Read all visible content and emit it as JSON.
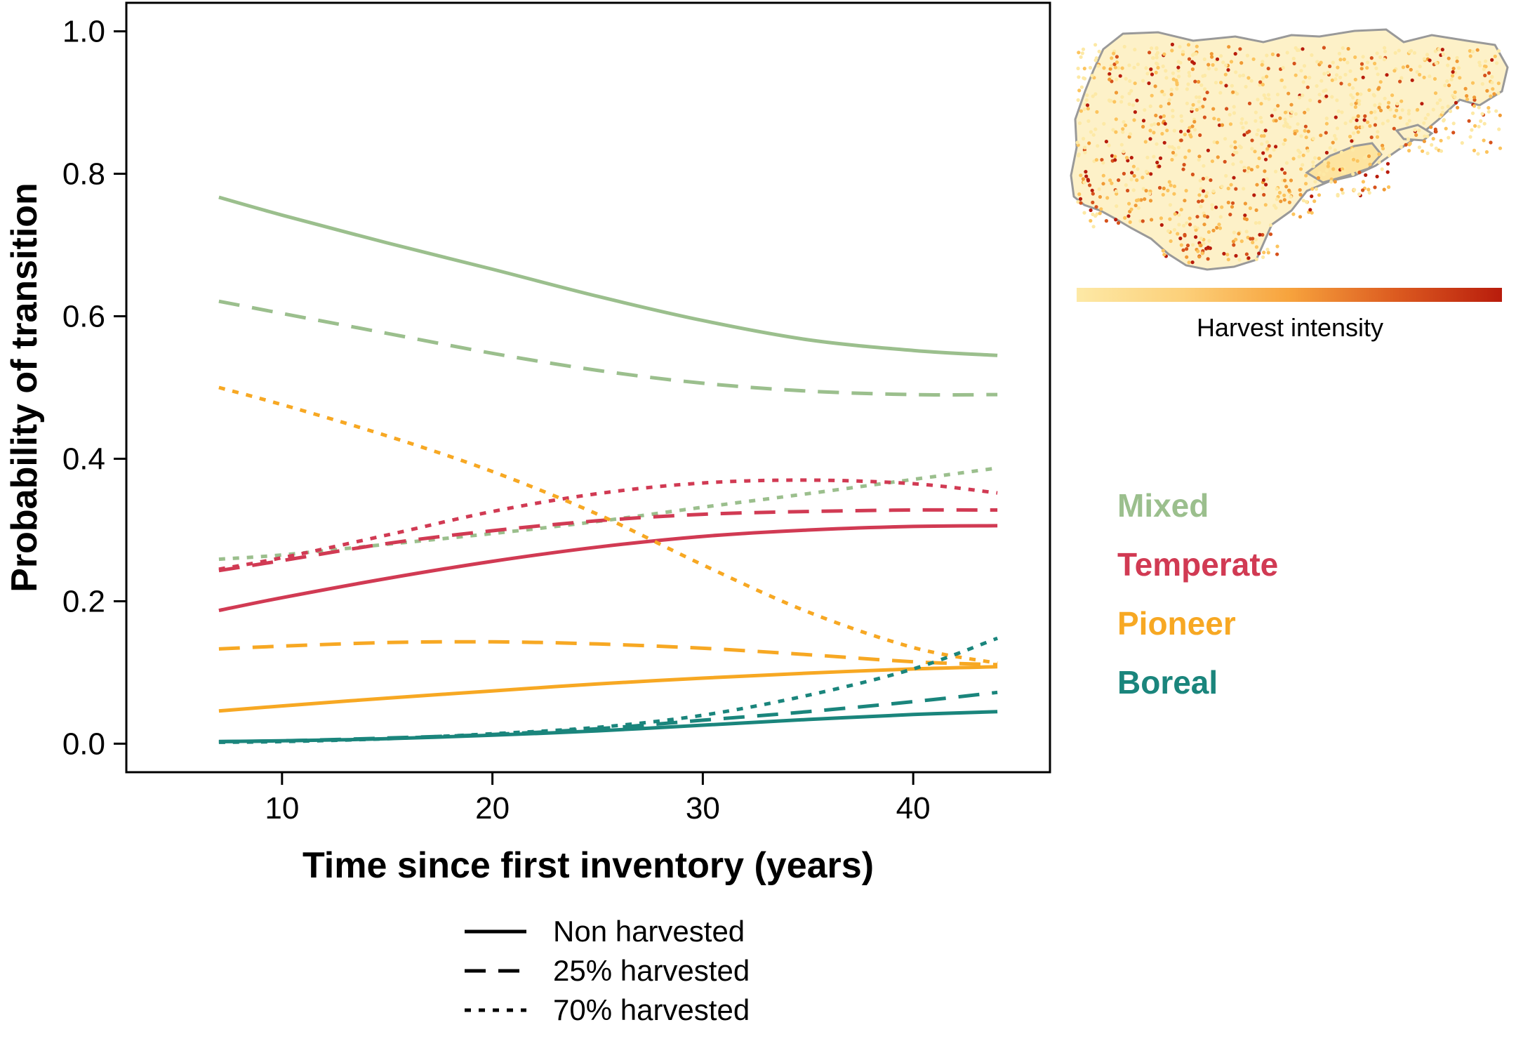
{
  "chart_data": {
    "type": "line",
    "xlabel": "Time since first inventory (years)",
    "ylabel": "Probability of transition",
    "xlim": [
      2.6,
      46.5
    ],
    "ylim": [
      -0.04,
      1.04
    ],
    "xticks": [
      10,
      20,
      30,
      40
    ],
    "yticks": [
      0.0,
      0.2,
      0.4,
      0.6,
      0.8,
      1.0
    ],
    "ytick_labels": [
      "0.0",
      "0.2",
      "0.4",
      "0.6",
      "0.8",
      "1.0"
    ],
    "x": [
      7,
      10,
      15,
      20,
      25,
      30,
      35,
      40,
      44
    ],
    "series": [
      {
        "name": "Mixed - Non harvested",
        "group": "Mixed",
        "harvest": "Non harvested",
        "values": [
          0.767,
          0.742,
          0.703,
          0.666,
          0.628,
          0.594,
          0.567,
          0.552,
          0.545
        ]
      },
      {
        "name": "Mixed - 25% harvested",
        "group": "Mixed",
        "harvest": "25% harvested",
        "values": [
          0.621,
          0.604,
          0.576,
          0.548,
          0.524,
          0.506,
          0.495,
          0.49,
          0.49
        ]
      },
      {
        "name": "Mixed - 70% harvested",
        "group": "Mixed",
        "harvest": "70% harvested",
        "values": [
          0.259,
          0.265,
          0.28,
          0.295,
          0.312,
          0.332,
          0.351,
          0.371,
          0.387
        ]
      },
      {
        "name": "Temperate - Non harvested",
        "group": "Temperate",
        "harvest": "Non harvested",
        "values": [
          0.187,
          0.205,
          0.232,
          0.256,
          0.276,
          0.291,
          0.3,
          0.305,
          0.306
        ]
      },
      {
        "name": "Temperate - 25% harvested",
        "group": "Temperate",
        "harvest": "25% harvested",
        "values": [
          0.243,
          0.257,
          0.281,
          0.299,
          0.313,
          0.322,
          0.326,
          0.328,
          0.328
        ]
      },
      {
        "name": "Temperate - 70% harvested",
        "group": "Temperate",
        "harvest": "70% harvested",
        "values": [
          0.245,
          0.261,
          0.293,
          0.326,
          0.351,
          0.366,
          0.37,
          0.365,
          0.352
        ]
      },
      {
        "name": "Pioneer - Non harvested",
        "group": "Pioneer",
        "harvest": "Non harvested",
        "values": [
          0.046,
          0.053,
          0.064,
          0.074,
          0.084,
          0.092,
          0.099,
          0.105,
          0.108
        ]
      },
      {
        "name": "Pioneer - 25% harvested",
        "group": "Pioneer",
        "harvest": "25% harvested",
        "values": [
          0.133,
          0.137,
          0.142,
          0.143,
          0.14,
          0.134,
          0.125,
          0.115,
          0.111
        ]
      },
      {
        "name": "Pioneer - 70% harvested",
        "group": "Pioneer",
        "harvest": "70% harvested",
        "values": [
          0.5,
          0.476,
          0.432,
          0.382,
          0.322,
          0.251,
          0.185,
          0.135,
          0.113
        ]
      },
      {
        "name": "Boreal - Non harvested",
        "group": "Boreal",
        "harvest": "Non harvested",
        "values": [
          0.003,
          0.004,
          0.007,
          0.012,
          0.018,
          0.026,
          0.034,
          0.041,
          0.045
        ]
      },
      {
        "name": "Boreal - 25% harvested",
        "group": "Boreal",
        "harvest": "25% harvested",
        "values": [
          0.003,
          0.004,
          0.008,
          0.013,
          0.021,
          0.033,
          0.045,
          0.059,
          0.072
        ]
      },
      {
        "name": "Boreal - 70% harvested",
        "group": "Boreal",
        "harvest": "70% harvested",
        "values": [
          0.002,
          0.003,
          0.007,
          0.014,
          0.023,
          0.04,
          0.068,
          0.105,
          0.148
        ]
      }
    ]
  },
  "groups": [
    {
      "label": "Mixed",
      "color": "#9bbf8d"
    },
    {
      "label": "Temperate",
      "color": "#d13a53"
    },
    {
      "label": "Pioneer",
      "color": "#f7a823"
    },
    {
      "label": "Boreal",
      "color": "#1a857c"
    }
  ],
  "harvest_legend": [
    {
      "label": "Non harvested",
      "style": "solid"
    },
    {
      "label": "25% harvested",
      "style": "dashed"
    },
    {
      "label": "70% harvested",
      "style": "dotted"
    }
  ],
  "inset_map": {
    "colorbar_label": "Harvest intensity",
    "colorbar_colors": [
      "#fde9a6",
      "#fcc45e",
      "#f09a35",
      "#d6521c",
      "#b81c0c"
    ]
  }
}
